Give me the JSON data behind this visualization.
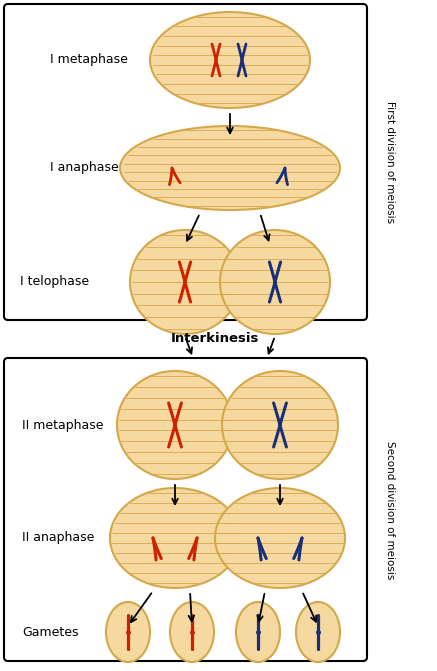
{
  "bg_color": "#ffffff",
  "cell_fill": "#f5d9a0",
  "cell_edge": "#d4a84b",
  "spindle_color": "#d4a84b",
  "red_chr": "#cc2200",
  "blue_chr": "#1a2f7a",
  "labels": {
    "I_metaphase": "I metaphase",
    "I_anaphase": "I anaphase",
    "I_telophase": "I telophase",
    "interkinesis": "Interkinesis",
    "II_metaphase": "II metaphase",
    "II_anaphase": "II anaphase",
    "gametes": "Gametes",
    "first_div": "First division of meiosis",
    "second_div": "Second division of meiosis"
  }
}
